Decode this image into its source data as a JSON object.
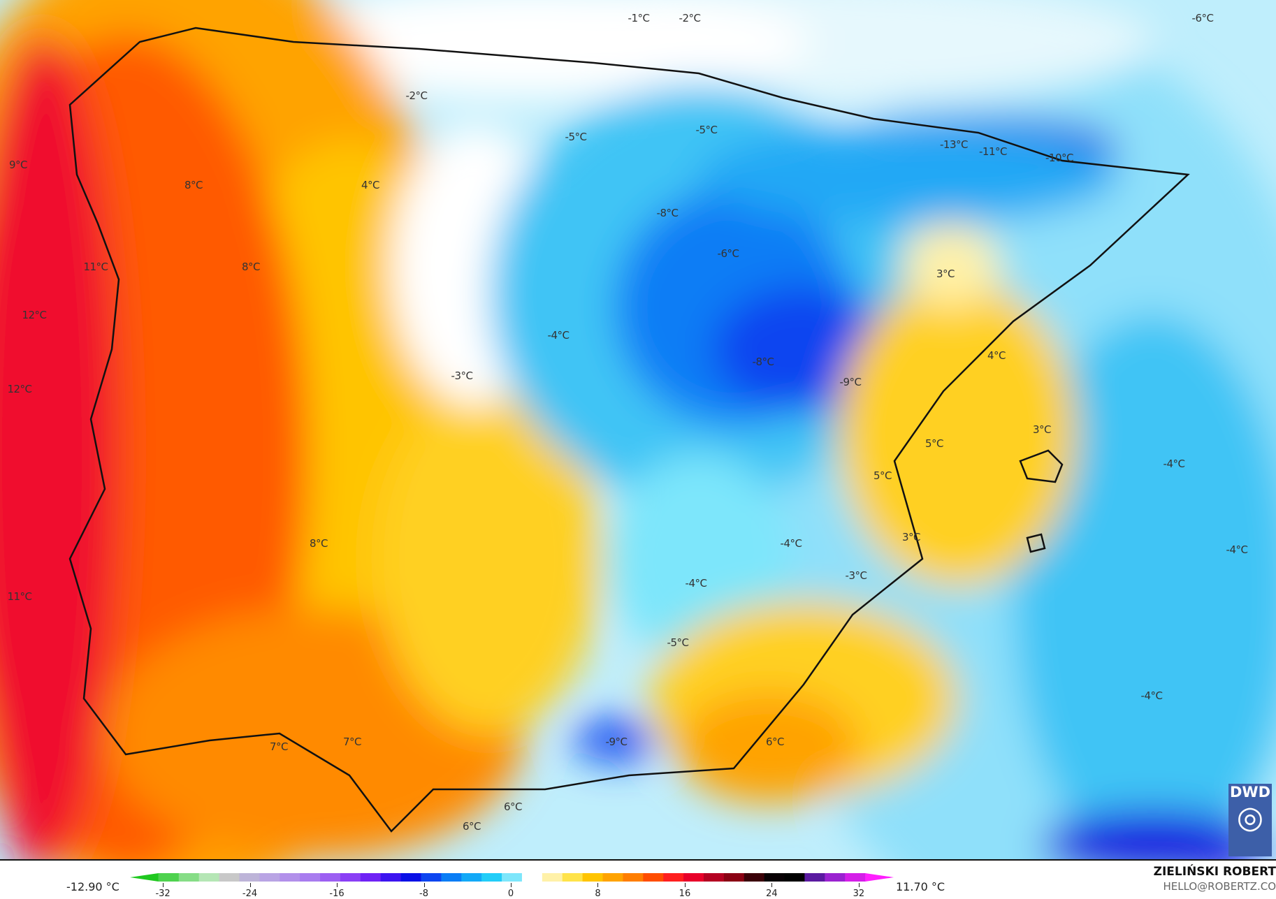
{
  "map": {
    "labels": [
      {
        "t": "-1°C",
        "v": [
          914,
          26
        ]
      },
      {
        "t": "-2°C",
        "v": [
          987,
          26
        ]
      },
      {
        "t": "-6°C",
        "v": [
          1721,
          26
        ]
      },
      {
        "t": "-2°C",
        "v": [
          596,
          137
        ]
      },
      {
        "t": "-5°C",
        "v": [
          824,
          196
        ]
      },
      {
        "t": "-5°C",
        "v": [
          1011,
          186
        ]
      },
      {
        "t": "-13°C",
        "v": [
          1365,
          207
        ]
      },
      {
        "t": "-11°C",
        "v": [
          1421,
          217
        ]
      },
      {
        "t": "-10°C",
        "v": [
          1516,
          226
        ]
      },
      {
        "t": "9°C",
        "v": [
          26,
          236
        ]
      },
      {
        "t": "8°C",
        "v": [
          277,
          265
        ]
      },
      {
        "t": "4°C",
        "v": [
          530,
          265
        ]
      },
      {
        "t": "-8°C",
        "v": [
          955,
          305
        ]
      },
      {
        "t": "-6°C",
        "v": [
          1042,
          363
        ]
      },
      {
        "t": "11°C",
        "v": [
          137,
          382
        ]
      },
      {
        "t": "8°C",
        "v": [
          359,
          382
        ]
      },
      {
        "t": "3°C",
        "v": [
          1353,
          392
        ]
      },
      {
        "t": "12°C",
        "v": [
          49,
          451
        ]
      },
      {
        "t": "-4°C",
        "v": [
          799,
          480
        ]
      },
      {
        "t": "4°C",
        "v": [
          1426,
          509
        ]
      },
      {
        "t": "-8°C",
        "v": [
          1092,
          518
        ]
      },
      {
        "t": "-3°C",
        "v": [
          661,
          538
        ]
      },
      {
        "t": "-9°C",
        "v": [
          1217,
          547
        ]
      },
      {
        "t": "12°C",
        "v": [
          28,
          557
        ]
      },
      {
        "t": "3°C",
        "v": [
          1491,
          615
        ]
      },
      {
        "t": "5°C",
        "v": [
          1337,
          635
        ]
      },
      {
        "t": "-4°C",
        "v": [
          1680,
          664
        ]
      },
      {
        "t": "5°C",
        "v": [
          1263,
          681
        ]
      },
      {
        "t": "3°C",
        "v": [
          1304,
          769
        ]
      },
      {
        "t": "-4°C",
        "v": [
          1132,
          778
        ]
      },
      {
        "t": "8°C",
        "v": [
          456,
          778
        ]
      },
      {
        "t": "-4°C",
        "v": [
          1770,
          787
        ]
      },
      {
        "t": "-3°C",
        "v": [
          1225,
          824
        ]
      },
      {
        "t": "-4°C",
        "v": [
          996,
          835
        ]
      },
      {
        "t": "11°C",
        "v": [
          28,
          854
        ]
      },
      {
        "t": "-5°C",
        "v": [
          970,
          920
        ]
      },
      {
        "t": "-4°C",
        "v": [
          1648,
          996
        ]
      },
      {
        "t": "-9°C",
        "v": [
          882,
          1062
        ]
      },
      {
        "t": "7°C",
        "v": [
          399,
          1069
        ]
      },
      {
        "t": "7°C",
        "v": [
          504,
          1062
        ]
      },
      {
        "t": "6°C",
        "v": [
          1109,
          1062
        ]
      },
      {
        "t": "6°C",
        "v": [
          734,
          1155
        ]
      },
      {
        "t": "6°C",
        "v": [
          675,
          1183
        ]
      }
    ],
    "logo": "DWD"
  },
  "colorbar": {
    "min_label": "-12.90 °C",
    "max_label": "11.70 °C",
    "ticks": [
      "-32",
      "-24",
      "-16",
      "-8",
      "0",
      "8",
      "16",
      "24",
      "32"
    ],
    "tick_values": [
      -32,
      -24,
      -16,
      -8,
      0,
      8,
      16,
      24,
      32
    ],
    "range": [
      -34,
      34
    ],
    "colors": [
      "#1fc81f",
      "#4ed24e",
      "#86dd86",
      "#b5e6b5",
      "#c8c8c8",
      "#bdb4d8",
      "#b9a4e4",
      "#b290ea",
      "#a87cef",
      "#9c5ff2",
      "#8a3ff5",
      "#6f22f5",
      "#3c14f0",
      "#0a10e6",
      "#0d45f0",
      "#0a7df5",
      "#13a9f7",
      "#22cdf8",
      "#7de6fb",
      "#ffffff",
      "#fff1a8",
      "#ffe34a",
      "#ffc400",
      "#ffa300",
      "#ff7e00",
      "#ff4d00",
      "#ff1f1f",
      "#e8002a",
      "#b40021",
      "#8a0013",
      "#3a0008",
      "#080004",
      "#000000",
      "#5a1aa0",
      "#9a22d0",
      "#d41ee8",
      "#ff1eff"
    ]
  },
  "credits": {
    "author": "ZIELIŃSKI ROBERT",
    "email": "HELLO@ROBERTZ.CO"
  }
}
